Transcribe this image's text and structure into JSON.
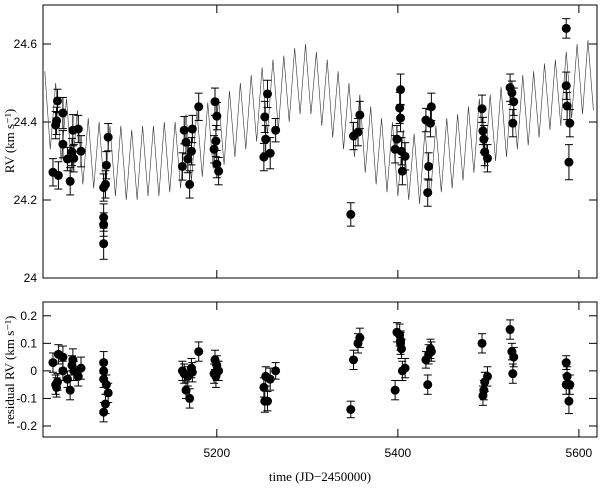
{
  "chart_data": [
    {
      "type": "scatter",
      "ylabel": "RV (km s⁻¹)",
      "xlim": [
        5008,
        5620
      ],
      "ylim": [
        24,
        24.7
      ],
      "xticks": [
        5200,
        5400,
        5600
      ],
      "yticks": [
        24,
        24.2,
        24.4,
        24.6
      ],
      "color": "#000000",
      "x": [
        5019,
        5023,
        5024,
        5025,
        5022,
        5030,
        5030,
        5035,
        5038,
        5040,
        5041,
        5042,
        5047,
        5050,
        5075,
        5077,
        5078,
        5075,
        5075,
        5075,
        5080,
        5162,
        5164,
        5166,
        5168,
        5170,
        5172,
        5173,
        5180,
        5198,
        5200,
        5199,
        5200,
        5202,
        5197,
        5252,
        5253,
        5254,
        5256,
        5259,
        5265,
        5348,
        5351,
        5356,
        5358,
        5397,
        5399,
        5402,
        5403,
        5404,
        5405,
        5408,
        5403,
        5431,
        5433,
        5434,
        5436,
        5437,
        5493,
        5494,
        5495,
        5496,
        5499,
        5524,
        5526,
        5527,
        5528,
        5586,
        5586,
        5587,
        5589,
        5590
      ],
      "values": [
        24.271,
        24.403,
        24.454,
        24.263,
        24.392,
        24.423,
        24.343,
        24.305,
        24.248,
        24.323,
        24.379,
        24.307,
        24.382,
        24.325,
        24.232,
        24.24,
        24.289,
        24.137,
        24.155,
        24.088,
        24.361,
        24.286,
        24.379,
        24.348,
        24.305,
        24.24,
        24.325,
        24.382,
        24.439,
        24.452,
        24.415,
        24.351,
        24.292,
        24.274,
        24.33,
        24.31,
        24.413,
        24.356,
        24.472,
        24.32,
        24.379,
        24.163,
        24.364,
        24.374,
        24.418,
        24.33,
        24.356,
        24.436,
        24.483,
        24.325,
        24.274,
        24.312,
        24.41,
        24.405,
        24.219,
        24.286,
        24.397,
        24.439,
        24.434,
        24.377,
        24.356,
        24.323,
        24.307,
        24.488,
        24.475,
        24.397,
        24.452,
        24.64,
        24.493,
        24.441,
        24.297,
        24.397
      ],
      "errors": [
        0.035,
        0.035,
        0.03,
        0.035,
        0.035,
        0.04,
        0.035,
        0.03,
        0.035,
        0.035,
        0.04,
        0.035,
        0.035,
        0.04,
        0.035,
        0.035,
        0.035,
        0.03,
        0.035,
        0.04,
        0.035,
        0.035,
        0.035,
        0.03,
        0.035,
        0.035,
        0.035,
        0.035,
        0.035,
        0.035,
        0.035,
        0.04,
        0.035,
        0.035,
        0.035,
        0.035,
        0.04,
        0.035,
        0.035,
        0.04,
        0.03,
        0.03,
        0.035,
        0.035,
        0.035,
        0.035,
        0.035,
        0.04,
        0.04,
        0.035,
        0.035,
        0.035,
        0.035,
        0.03,
        0.035,
        0.035,
        0.035,
        0.035,
        0.035,
        0.035,
        0.035,
        0.035,
        0.035,
        0.035,
        0.03,
        0.035,
        0.035,
        0.025,
        0.035,
        0.035,
        0.045,
        0.035
      ],
      "model": {
        "x": [
          5010,
          5016,
          5022,
          5028,
          5034,
          5040,
          5046,
          5052,
          5058,
          5064,
          5070,
          5076,
          5082,
          5088,
          5094,
          5100,
          5106,
          5112,
          5118,
          5124,
          5130,
          5136,
          5142,
          5148,
          5154,
          5160,
          5166,
          5172,
          5178,
          5184,
          5190,
          5196,
          5202,
          5208,
          5214,
          5220,
          5226,
          5232,
          5238,
          5244,
          5250,
          5256,
          5262,
          5268,
          5274,
          5280,
          5286,
          5292,
          5298,
          5304,
          5310,
          5316,
          5322,
          5328,
          5334,
          5340,
          5346,
          5352,
          5358,
          5364,
          5370,
          5376,
          5382,
          5388,
          5394,
          5400,
          5406,
          5412,
          5418,
          5424,
          5430,
          5436,
          5442,
          5448,
          5454,
          5460,
          5466,
          5472,
          5478,
          5484,
          5490,
          5496,
          5502,
          5508,
          5514,
          5520,
          5526,
          5532,
          5538,
          5544,
          5550,
          5556,
          5562,
          5568,
          5574,
          5580,
          5586,
          5592,
          5598,
          5604,
          5610,
          5616
        ],
        "values": [
          24.53,
          24.33,
          24.5,
          24.3,
          24.46,
          24.27,
          24.43,
          24.24,
          24.41,
          24.23,
          24.4,
          24.22,
          24.39,
          24.21,
          24.39,
          24.2,
          24.38,
          24.2,
          24.39,
          24.21,
          24.39,
          24.21,
          24.4,
          24.22,
          24.4,
          24.23,
          24.42,
          24.25,
          24.43,
          24.26,
          24.45,
          24.28,
          24.46,
          24.29,
          24.48,
          24.31,
          24.5,
          24.33,
          24.52,
          24.35,
          24.54,
          24.37,
          24.56,
          24.38,
          24.57,
          24.4,
          24.59,
          24.42,
          24.6,
          24.42,
          24.58,
          24.39,
          24.56,
          24.36,
          24.53,
          24.33,
          24.5,
          24.31,
          24.47,
          24.27,
          24.44,
          24.24,
          24.41,
          24.22,
          24.4,
          24.21,
          24.38,
          24.2,
          24.37,
          24.19,
          24.38,
          24.21,
          24.39,
          24.22,
          24.41,
          24.23,
          24.42,
          24.25,
          24.44,
          24.27,
          24.46,
          24.28,
          24.47,
          24.3,
          24.49,
          24.31,
          24.5,
          24.33,
          24.52,
          24.34,
          24.53,
          24.36,
          24.55,
          24.38,
          24.56,
          24.39,
          24.58,
          24.41,
          24.6,
          24.42,
          24.61,
          24.43
        ]
      }
    },
    {
      "type": "scatter",
      "ylabel": "residual RV (km s⁻¹)",
      "xlabel": "time (JD−2450000)",
      "xlim": [
        5008,
        5620
      ],
      "ylim": [
        -0.24,
        0.25
      ],
      "xticks": [
        5200,
        5400,
        5600
      ],
      "yticks": [
        -0.2,
        -0.1,
        0,
        0.1,
        0.2
      ],
      "color": "#000000",
      "x": [
        5019,
        5023,
        5024,
        5025,
        5022,
        5030,
        5030,
        5035,
        5038,
        5040,
        5041,
        5042,
        5047,
        5050,
        5075,
        5077,
        5078,
        5075,
        5075,
        5075,
        5080,
        5162,
        5164,
        5166,
        5168,
        5170,
        5172,
        5173,
        5180,
        5198,
        5200,
        5199,
        5200,
        5202,
        5197,
        5252,
        5253,
        5254,
        5256,
        5259,
        5265,
        5348,
        5351,
        5356,
        5358,
        5397,
        5399,
        5402,
        5403,
        5404,
        5405,
        5408,
        5403,
        5431,
        5433,
        5434,
        5436,
        5437,
        5493,
        5494,
        5495,
        5496,
        5499,
        5524,
        5526,
        5527,
        5528,
        5586,
        5586,
        5587,
        5589,
        5590
      ],
      "values": [
        0.03,
        -0.06,
        -0.04,
        0.06,
        -0.05,
        0.05,
        0,
        -0.03,
        -0.07,
        0.02,
        0.04,
        0,
        -0.02,
        0.01,
        -0.15,
        -0.12,
        -0.05,
        -0.03,
        0,
        0.03,
        -0.08,
        0,
        -0.01,
        -0.07,
        -0.02,
        -0.1,
        0.01,
        -0.005,
        0.07,
        0.04,
        0,
        -0.02,
        0.02,
        0,
        -0.01,
        -0.06,
        -0.11,
        -0.02,
        -0.11,
        -0.03,
        0,
        -0.14,
        0.04,
        0.1,
        0.12,
        -0.07,
        0.14,
        0.13,
        0.1,
        0.08,
        0,
        0.01,
        0.11,
        0.04,
        -0.05,
        0.06,
        0.08,
        0.07,
        0.1,
        -0.09,
        -0.07,
        -0.04,
        -0.02,
        0.15,
        0.07,
        -0.01,
        0.05,
        0.03,
        -0.05,
        -0.02,
        -0.11,
        -0.05
      ],
      "errors": [
        0.035,
        0.035,
        0.03,
        0.035,
        0.035,
        0.04,
        0.035,
        0.03,
        0.035,
        0.035,
        0.04,
        0.035,
        0.035,
        0.04,
        0.035,
        0.035,
        0.035,
        0.03,
        0.035,
        0.04,
        0.035,
        0.035,
        0.035,
        0.03,
        0.035,
        0.035,
        0.035,
        0.035,
        0.035,
        0.035,
        0.035,
        0.04,
        0.035,
        0.035,
        0.035,
        0.035,
        0.04,
        0.035,
        0.035,
        0.04,
        0.03,
        0.03,
        0.035,
        0.035,
        0.035,
        0.035,
        0.035,
        0.04,
        0.04,
        0.035,
        0.035,
        0.035,
        0.035,
        0.03,
        0.035,
        0.035,
        0.035,
        0.035,
        0.035,
        0.035,
        0.035,
        0.035,
        0.035,
        0.035,
        0.03,
        0.035,
        0.035,
        0.025,
        0.035,
        0.035,
        0.045,
        0.035
      ]
    }
  ]
}
